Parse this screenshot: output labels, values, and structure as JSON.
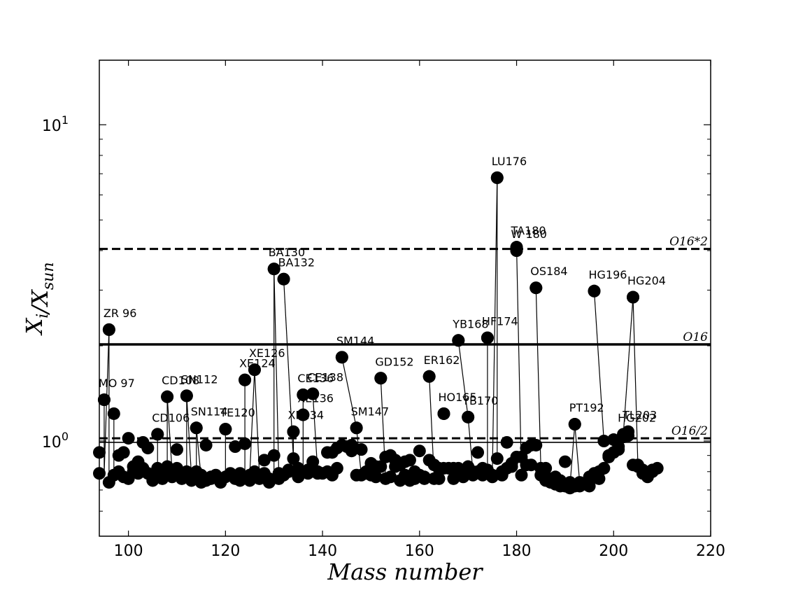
{
  "chart_data": {
    "type": "scatter",
    "xlabel": "Mass number",
    "ylabel": "X_i / X_sun",
    "xlim": [
      94,
      220
    ],
    "ylim": [
      0.5,
      16
    ],
    "yscale": "log",
    "x_ticks": [
      100,
      120,
      140,
      160,
      180,
      200,
      220
    ],
    "y_ticks": [
      {
        "value": 1,
        "label": "10^0"
      },
      {
        "value": 10,
        "label": "10^1"
      }
    ],
    "grid": false,
    "marker_color": "#000000",
    "line_color": "#000000",
    "reference_lines": [
      {
        "label": "O16*2",
        "y": 4.05,
        "style": "dashed"
      },
      {
        "label": "O16",
        "y": 2.02,
        "style": "solid"
      },
      {
        "label": "O16/2",
        "y": 1.02,
        "style": "dashed"
      },
      {
        "label": "",
        "y": 0.99,
        "style": "solid"
      }
    ],
    "labeled_points": [
      {
        "label": "ZR 96",
        "x": 96,
        "y": 2.25
      },
      {
        "label": "MO 97",
        "x": 95,
        "y": 1.35
      },
      {
        "label": "CD106",
        "x": 106,
        "y": 1.05
      },
      {
        "label": "CD108",
        "x": 108,
        "y": 1.38
      },
      {
        "label": "SN112",
        "x": 112,
        "y": 1.39
      },
      {
        "label": "SN114",
        "x": 114,
        "y": 1.1
      },
      {
        "label": "TE120",
        "x": 120,
        "y": 1.09
      },
      {
        "label": "XE124",
        "x": 124,
        "y": 1.56
      },
      {
        "label": "XE126",
        "x": 126,
        "y": 1.68
      },
      {
        "label": "BA130",
        "x": 130,
        "y": 3.5
      },
      {
        "label": "BA132",
        "x": 132,
        "y": 3.25
      },
      {
        "label": "XE134",
        "x": 134,
        "y": 1.07
      },
      {
        "label": "XE136",
        "x": 136,
        "y": 1.21
      },
      {
        "label": "CE136",
        "x": 136,
        "y": 1.4
      },
      {
        "label": "CE138",
        "x": 138,
        "y": 1.41
      },
      {
        "label": "SM144",
        "x": 144,
        "y": 1.84
      },
      {
        "label": "SM147",
        "x": 147,
        "y": 1.1
      },
      {
        "label": "GD152",
        "x": 152,
        "y": 1.58
      },
      {
        "label": "ER162",
        "x": 162,
        "y": 1.6
      },
      {
        "label": "HO165",
        "x": 165,
        "y": 1.22
      },
      {
        "label": "YB168",
        "x": 168,
        "y": 2.08
      },
      {
        "label": "YB170",
        "x": 170,
        "y": 1.19
      },
      {
        "label": "HF174",
        "x": 174,
        "y": 2.12
      },
      {
        "label": "LU176",
        "x": 176,
        "y": 6.8
      },
      {
        "label": "TA180",
        "x": 180,
        "y": 4.1
      },
      {
        "label": "W 180",
        "x": 180,
        "y": 4.0
      },
      {
        "label": "OS184",
        "x": 184,
        "y": 3.05
      },
      {
        "label": "PT192",
        "x": 192,
        "y": 1.13
      },
      {
        "label": "HG196",
        "x": 196,
        "y": 2.98
      },
      {
        "label": "TL203",
        "x": 203,
        "y": 1.07
      },
      {
        "label": "HG202",
        "x": 202,
        "y": 1.05
      },
      {
        "label": "HG204",
        "x": 204,
        "y": 2.85
      }
    ],
    "points": [
      [
        94,
        0.92
      ],
      [
        94,
        0.79
      ],
      [
        95,
        1.35
      ],
      [
        96,
        2.25
      ],
      [
        96,
        0.74
      ],
      [
        97,
        1.22
      ],
      [
        97,
        0.78
      ],
      [
        98,
        0.9
      ],
      [
        98,
        0.8
      ],
      [
        99,
        0.92
      ],
      [
        99,
        0.77
      ],
      [
        100,
        1.02
      ],
      [
        100,
        0.76
      ],
      [
        101,
        0.83
      ],
      [
        101,
        0.8
      ],
      [
        102,
        0.86
      ],
      [
        102,
        0.79
      ],
      [
        103,
        0.99
      ],
      [
        103,
        0.82
      ],
      [
        104,
        0.95
      ],
      [
        104,
        0.79
      ],
      [
        105,
        0.77
      ],
      [
        105,
        0.75
      ],
      [
        106,
        1.05
      ],
      [
        106,
        0.82
      ],
      [
        107,
        0.76
      ],
      [
        107,
        0.8
      ],
      [
        108,
        1.38
      ],
      [
        108,
        0.83
      ],
      [
        109,
        0.77
      ],
      [
        109,
        0.8
      ],
      [
        110,
        0.94
      ],
      [
        110,
        0.82
      ],
      [
        111,
        0.78
      ],
      [
        111,
        0.76
      ],
      [
        112,
        1.39
      ],
      [
        112,
        0.8
      ],
      [
        113,
        0.75
      ],
      [
        113,
        0.77
      ],
      [
        114,
        1.1
      ],
      [
        114,
        0.8
      ],
      [
        115,
        0.78
      ],
      [
        115,
        0.74
      ],
      [
        116,
        0.97
      ],
      [
        116,
        0.75
      ],
      [
        117,
        0.77
      ],
      [
        117,
        0.76
      ],
      [
        118,
        0.78
      ],
      [
        119,
        0.76
      ],
      [
        119,
        0.74
      ],
      [
        120,
        1.09
      ],
      [
        120,
        0.77
      ],
      [
        121,
        0.79
      ],
      [
        121,
        0.78
      ],
      [
        122,
        0.96
      ],
      [
        122,
        0.76
      ],
      [
        123,
        0.79
      ],
      [
        123,
        0.75
      ],
      [
        124,
        0.98
      ],
      [
        124,
        1.56
      ],
      [
        125,
        0.75
      ],
      [
        125,
        0.78
      ],
      [
        126,
        1.68
      ],
      [
        126,
        0.8
      ],
      [
        127,
        0.76
      ],
      [
        127,
        0.78
      ],
      [
        128,
        0.87
      ],
      [
        128,
        0.79
      ],
      [
        129,
        0.74
      ],
      [
        129,
        0.76
      ],
      [
        130,
        3.5
      ],
      [
        130,
        0.9
      ],
      [
        131,
        0.79
      ],
      [
        131,
        0.76
      ],
      [
        132,
        3.25
      ],
      [
        132,
        0.78
      ],
      [
        133,
        0.81
      ],
      [
        133,
        0.8
      ],
      [
        134,
        1.07
      ],
      [
        134,
        0.88
      ],
      [
        135,
        0.82
      ],
      [
        135,
        0.77
      ],
      [
        136,
        1.21
      ],
      [
        136,
        1.4
      ],
      [
        137,
        0.79
      ],
      [
        137,
        0.81
      ],
      [
        138,
        1.41
      ],
      [
        138,
        0.86
      ],
      [
        139,
        0.8
      ],
      [
        139,
        0.79
      ],
      [
        140,
        0.79
      ],
      [
        141,
        0.92
      ],
      [
        141,
        0.8
      ],
      [
        142,
        0.78
      ],
      [
        142,
        0.92
      ],
      [
        143,
        0.82
      ],
      [
        143,
        0.95
      ],
      [
        144,
        1.84
      ],
      [
        144,
        0.97
      ],
      [
        145,
        0.96
      ],
      [
        146,
        0.97
      ],
      [
        146,
        0.93
      ],
      [
        147,
        1.1
      ],
      [
        147,
        0.78
      ],
      [
        148,
        0.94
      ],
      [
        148,
        0.78
      ],
      [
        149,
        0.79
      ],
      [
        149,
        0.8
      ],
      [
        150,
        0.85
      ],
      [
        150,
        0.78
      ],
      [
        151,
        0.83
      ],
      [
        151,
        0.77
      ],
      [
        152,
        1.58
      ],
      [
        152,
        0.83
      ],
      [
        153,
        0.76
      ],
      [
        153,
        0.89
      ],
      [
        154,
        0.9
      ],
      [
        154,
        0.77
      ],
      [
        155,
        0.87
      ],
      [
        155,
        0.83
      ],
      [
        156,
        0.84
      ],
      [
        156,
        0.75
      ],
      [
        157,
        0.86
      ],
      [
        157,
        0.78
      ],
      [
        158,
        0.87
      ],
      [
        158,
        0.75
      ],
      [
        159,
        0.8
      ],
      [
        159,
        0.76
      ],
      [
        160,
        0.93
      ],
      [
        160,
        0.78
      ],
      [
        161,
        0.77
      ],
      [
        161,
        0.76
      ],
      [
        162,
        1.6
      ],
      [
        162,
        0.87
      ],
      [
        163,
        0.84
      ],
      [
        163,
        0.76
      ],
      [
        164,
        0.82
      ],
      [
        164,
        0.76
      ],
      [
        165,
        1.22
      ],
      [
        165,
        0.82
      ],
      [
        166,
        0.82
      ],
      [
        167,
        0.82
      ],
      [
        167,
        0.76
      ],
      [
        168,
        2.08
      ],
      [
        168,
        0.82
      ],
      [
        169,
        0.77
      ],
      [
        169,
        0.8
      ],
      [
        170,
        1.19
      ],
      [
        170,
        0.83
      ],
      [
        171,
        0.78
      ],
      [
        171,
        0.8
      ],
      [
        172,
        0.92
      ],
      [
        172,
        0.8
      ],
      [
        173,
        0.78
      ],
      [
        173,
        0.82
      ],
      [
        174,
        2.12
      ],
      [
        174,
        0.81
      ],
      [
        175,
        0.78
      ],
      [
        175,
        0.77
      ],
      [
        176,
        6.8
      ],
      [
        176,
        0.88
      ],
      [
        177,
        0.8
      ],
      [
        177,
        0.78
      ],
      [
        178,
        0.99
      ],
      [
        178,
        0.82
      ],
      [
        179,
        0.85
      ],
      [
        179,
        0.83
      ],
      [
        180,
        4.1
      ],
      [
        180,
        4.0
      ],
      [
        180,
        0.89
      ],
      [
        181,
        0.78
      ],
      [
        181,
        0.89
      ],
      [
        182,
        0.95
      ],
      [
        182,
        0.84
      ],
      [
        183,
        0.97
      ],
      [
        183,
        0.84
      ],
      [
        184,
        3.05
      ],
      [
        184,
        0.97
      ],
      [
        185,
        0.82
      ],
      [
        185,
        0.78
      ],
      [
        186,
        0.82
      ],
      [
        186,
        0.75
      ],
      [
        187,
        0.76
      ],
      [
        187,
        0.74
      ],
      [
        188,
        0.77
      ],
      [
        188,
        0.73
      ],
      [
        189,
        0.75
      ],
      [
        189,
        0.72
      ],
      [
        190,
        0.86
      ],
      [
        190,
        0.72
      ],
      [
        191,
        0.74
      ],
      [
        191,
        0.71
      ],
      [
        192,
        1.13
      ],
      [
        192,
        0.72
      ],
      [
        193,
        0.74
      ],
      [
        193,
        0.72
      ],
      [
        194,
        0.73
      ],
      [
        195,
        0.72
      ],
      [
        195,
        0.77
      ],
      [
        196,
        2.98
      ],
      [
        196,
        0.79
      ],
      [
        197,
        0.76
      ],
      [
        197,
        0.8
      ],
      [
        198,
        1.0
      ],
      [
        198,
        0.82
      ],
      [
        199,
        0.89
      ],
      [
        199,
        0.9
      ],
      [
        200,
        1.01
      ],
      [
        200,
        0.92
      ],
      [
        201,
        0.96
      ],
      [
        201,
        0.94
      ],
      [
        202,
        1.05
      ],
      [
        202,
        1.03
      ],
      [
        203,
        1.07
      ],
      [
        203,
        1.04
      ],
      [
        204,
        2.85
      ],
      [
        204,
        0.84
      ],
      [
        205,
        0.83
      ],
      [
        205,
        0.84
      ],
      [
        206,
        0.81
      ],
      [
        206,
        0.79
      ],
      [
        207,
        0.77
      ],
      [
        207,
        0.78
      ],
      [
        208,
        0.81
      ],
      [
        208,
        0.8
      ],
      [
        209,
        0.82
      ]
    ],
    "connectors": [
      [
        [
          95,
          0.79
        ],
        [
          96,
          2.25
        ]
      ],
      [
        [
          96,
          2.25
        ],
        [
          96,
          0.74
        ]
      ],
      [
        [
          95,
          1.35
        ],
        [
          95,
          0.79
        ]
      ],
      [
        [
          97,
          1.22
        ],
        [
          97,
          0.78
        ]
      ],
      [
        [
          106,
          0.82
        ],
        [
          106,
          1.05
        ]
      ],
      [
        [
          108,
          0.8
        ],
        [
          108,
          1.38
        ]
      ],
      [
        [
          108,
          1.38
        ],
        [
          109,
          0.8
        ]
      ],
      [
        [
          112,
          0.78
        ],
        [
          112,
          1.39
        ]
      ],
      [
        [
          112,
          1.39
        ],
        [
          113,
          0.77
        ]
      ],
      [
        [
          114,
          0.78
        ],
        [
          114,
          1.1
        ]
      ],
      [
        [
          114,
          1.1
        ],
        [
          115,
          0.76
        ]
      ],
      [
        [
          120,
          0.76
        ],
        [
          120,
          1.09
        ]
      ],
      [
        [
          124,
          0.79
        ],
        [
          124,
          1.56
        ]
      ],
      [
        [
          126,
          1.68
        ],
        [
          127,
          0.78
        ]
      ],
      [
        [
          125,
          0.78
        ],
        [
          126,
          1.68
        ]
      ],
      [
        [
          130,
          0.76
        ],
        [
          130,
          3.5
        ]
      ],
      [
        [
          130,
          3.5
        ],
        [
          131,
          0.78
        ]
      ],
      [
        [
          132,
          3.25
        ],
        [
          134,
          0.88
        ]
      ],
      [
        [
          134,
          1.07
        ],
        [
          134,
          0.8
        ]
      ],
      [
        [
          136,
          1.4
        ],
        [
          136,
          0.8
        ]
      ],
      [
        [
          138,
          1.41
        ],
        [
          139,
          0.8
        ]
      ],
      [
        [
          144,
          1.84
        ],
        [
          147,
          1.1
        ]
      ],
      [
        [
          147,
          1.1
        ],
        [
          148,
          0.78
        ]
      ],
      [
        [
          152,
          1.58
        ],
        [
          153,
          0.77
        ]
      ],
      [
        [
          162,
          1.6
        ],
        [
          163,
          0.77
        ]
      ],
      [
        [
          168,
          2.08
        ],
        [
          170,
          1.19
        ]
      ],
      [
        [
          170,
          1.19
        ],
        [
          171,
          0.8
        ]
      ],
      [
        [
          174,
          2.12
        ],
        [
          174,
          0.81
        ]
      ],
      [
        [
          175,
          0.78
        ],
        [
          176,
          6.8
        ]
      ],
      [
        [
          176,
          6.8
        ],
        [
          176,
          0.88
        ]
      ],
      [
        [
          180,
          4.1
        ],
        [
          181,
          0.78
        ]
      ],
      [
        [
          184,
          3.05
        ],
        [
          185,
          0.82
        ]
      ],
      [
        [
          191,
          0.72
        ],
        [
          192,
          1.13
        ]
      ],
      [
        [
          192,
          1.13
        ],
        [
          193,
          0.74
        ]
      ],
      [
        [
          196,
          2.98
        ],
        [
          198,
          1.0
        ]
      ],
      [
        [
          202,
          1.05
        ],
        [
          204,
          2.85
        ]
      ],
      [
        [
          204,
          2.85
        ],
        [
          205,
          0.84
        ]
      ]
    ]
  }
}
